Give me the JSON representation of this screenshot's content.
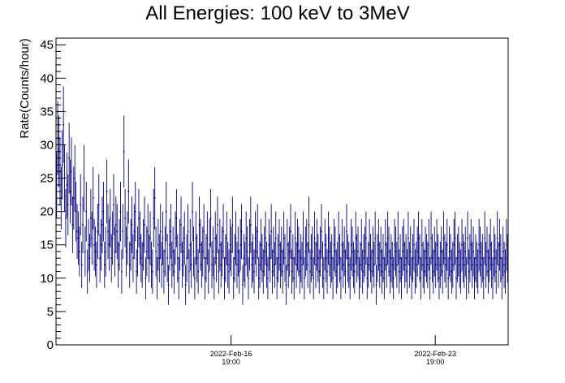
{
  "chart_data": {
    "type": "scatter",
    "title": "All Energies:  100 keV to 3MeV",
    "ylabel": "Rate(Counts/hour)",
    "xlabel": "",
    "ylim": [
      0,
      46
    ],
    "y_ticks": [
      0,
      5,
      10,
      15,
      20,
      25,
      30,
      35,
      40,
      45
    ],
    "x_range_hours": [
      0,
      372
    ],
    "x_ticks": [
      {
        "hours_from_start": 144,
        "line1": "2022-Feb-16",
        "line2": "19:00"
      },
      {
        "hours_from_start": 312,
        "line1": "2022-Feb-23",
        "line2": "19:00"
      }
    ],
    "x_unit": "hours",
    "grid": false,
    "marker_color": "#00007f",
    "series": [
      {
        "values": [
          24,
          31,
          29,
          26,
          22,
          27,
          33,
          25,
          19,
          24,
          21,
          28,
          23,
          26,
          18,
          22,
          25,
          20,
          17,
          16,
          14,
          21,
          12,
          18,
          25,
          14,
          20,
          11,
          15,
          13,
          19,
          16,
          22,
          15,
          14,
          12,
          17,
          21,
          13,
          15,
          18,
          20,
          12,
          14,
          23,
          17,
          15,
          19,
          13,
          16,
          21,
          14,
          18,
          17,
          12,
          15,
          20,
          11,
          17,
          29,
          19,
          14,
          16,
          23,
          12,
          15,
          18,
          13,
          17,
          20,
          11,
          14,
          19,
          16,
          13,
          12,
          15,
          18,
          10,
          14,
          17,
          13,
          16,
          12,
          11,
          19,
          22,
          14,
          10,
          15,
          13,
          17,
          12,
          16,
          11,
          14,
          20,
          13,
          9,
          15,
          17,
          12,
          14,
          11,
          16,
          19,
          13,
          10,
          15,
          18,
          12,
          14,
          16,
          9,
          13,
          17,
          11,
          15,
          12,
          20,
          14,
          10,
          16,
          13,
          11,
          18,
          15,
          12,
          14,
          17,
          10,
          13,
          16,
          11,
          15,
          19,
          12,
          14,
          10,
          16,
          13,
          18,
          11,
          15,
          12,
          14,
          17,
          10,
          13,
          16,
          12,
          11,
          15,
          14,
          18,
          10,
          13,
          16,
          12,
          14,
          11,
          15,
          17,
          9,
          13,
          12,
          16,
          14,
          10,
          15,
          18,
          12,
          13,
          11,
          16,
          14,
          17,
          10,
          12,
          15,
          13,
          11,
          14,
          16,
          12,
          10,
          15,
          13,
          17,
          11,
          14,
          12,
          16,
          10,
          13,
          15,
          12,
          14,
          11,
          16,
          13,
          9,
          15,
          12,
          14,
          17,
          11,
          13,
          10,
          16,
          12,
          15,
          14,
          11,
          13,
          12,
          16,
          10,
          14,
          15,
          12,
          18,
          11,
          13,
          14,
          10,
          16,
          12,
          15,
          13,
          11,
          14,
          17,
          12,
          10,
          15,
          13,
          11,
          16,
          14,
          12,
          13,
          10,
          15,
          14,
          11,
          12,
          16,
          13,
          10,
          15,
          12,
          14,
          11,
          17,
          13,
          12,
          10,
          15,
          14,
          12,
          11,
          16,
          13,
          14,
          10,
          12,
          15,
          11,
          13,
          14,
          16,
          10,
          12,
          15,
          13,
          11,
          14,
          12,
          16,
          9,
          13,
          15,
          12,
          14,
          11,
          13,
          10,
          15,
          12,
          16,
          14,
          11,
          13,
          12,
          10,
          15,
          14,
          12,
          16,
          11,
          13,
          10,
          14,
          15,
          12,
          13,
          11,
          16,
          12,
          14,
          10,
          13,
          15,
          11,
          12,
          14,
          16,
          13,
          10,
          15,
          12,
          11,
          14,
          13,
          12,
          15,
          10,
          16,
          13,
          11,
          14,
          12,
          15,
          13,
          10,
          12,
          14,
          11,
          16,
          13,
          12,
          15,
          10,
          14,
          13,
          11,
          12,
          15,
          16,
          10,
          13,
          14,
          12,
          11,
          15,
          13,
          12,
          14,
          10,
          16,
          11,
          13,
          15,
          12,
          14,
          10,
          13,
          12,
          11,
          15,
          14,
          12,
          13,
          10,
          16,
          12,
          14,
          11,
          13,
          15,
          12,
          10,
          14,
          13,
          11,
          16,
          12,
          15,
          13,
          10,
          14,
          12,
          11,
          15,
          13
        ]
      }
    ]
  }
}
